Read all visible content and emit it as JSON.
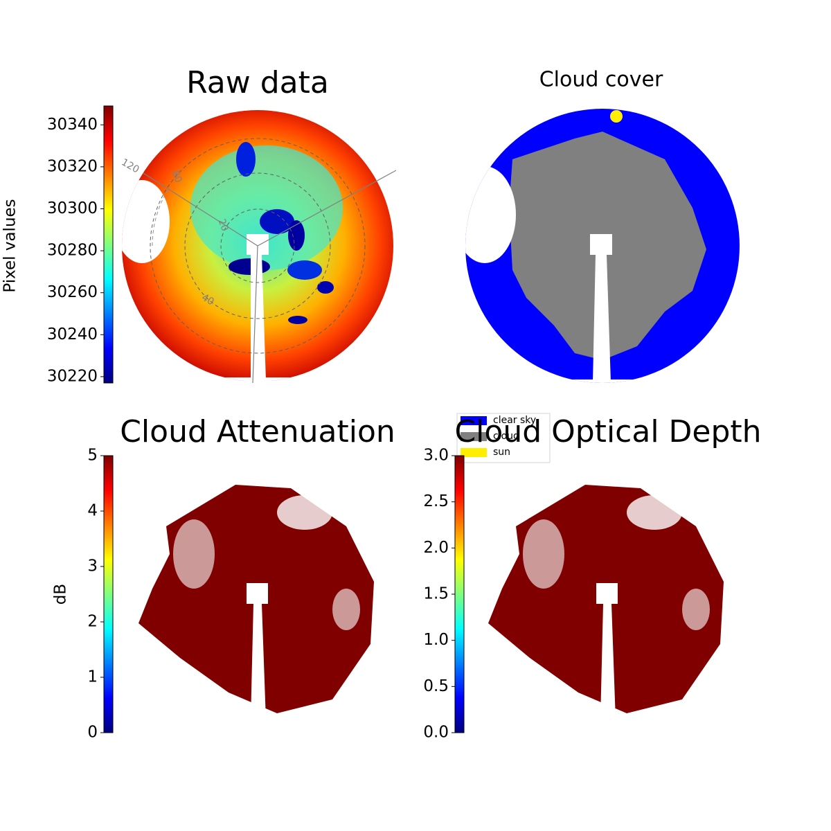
{
  "chart_data": [
    {
      "type": "image",
      "title": "Raw data",
      "colorbar_label": "Pixel values",
      "colormap": "jet",
      "ylim": [
        30217,
        30349
      ],
      "yticks": [
        30220,
        30240,
        30260,
        30280,
        30300,
        30320,
        30340
      ],
      "annotations": [
        "120",
        "80",
        "40",
        "20"
      ]
    },
    {
      "type": "image",
      "title": "Cloud cover",
      "legend": [
        {
          "label": "clear sky",
          "color": "#0000ff"
        },
        {
          "label": "cloud",
          "color": "#808080"
        },
        {
          "label": "sun",
          "color": "#ffee00"
        }
      ]
    },
    {
      "type": "image",
      "title": "Cloud Attenuation",
      "colorbar_label": "dB",
      "colormap": "jet",
      "ylim": [
        0,
        5
      ],
      "yticks": [
        0,
        1,
        2,
        3,
        4,
        5
      ]
    },
    {
      "type": "image",
      "title": "Cloud Optical Depth",
      "colormap": "jet",
      "ylim": [
        0,
        3
      ],
      "yticks": [
        {
          "value": 0,
          "label": "0.0"
        },
        0.5,
        {
          "value": 1,
          "label": "1.0"
        },
        1.5,
        {
          "value": 2,
          "label": "2.0"
        },
        2.5,
        {
          "value": 3,
          "label": "3.0"
        }
      ]
    }
  ]
}
